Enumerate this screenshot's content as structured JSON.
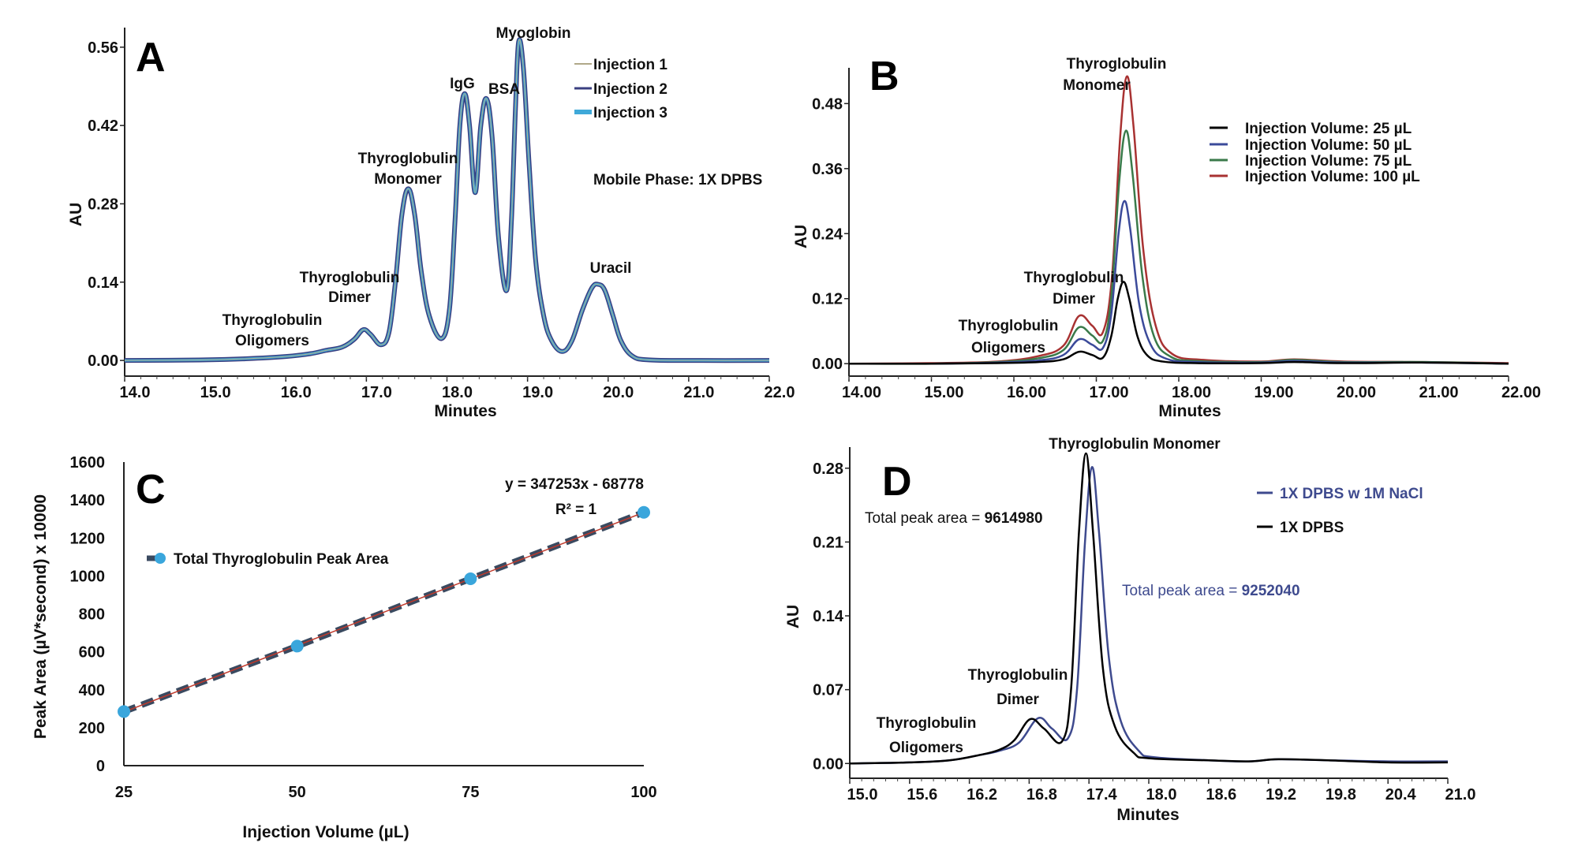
{
  "chart_data": [
    {
      "panel": "A",
      "type": "line",
      "xlabel": "Minutes",
      "ylabel": "AU",
      "xlim": [
        14,
        22
      ],
      "ylim": [
        -0.028,
        0.595
      ],
      "xticks": [
        "14.0",
        "15.0",
        "16.0",
        "17.0",
        "18.0",
        "19.0",
        "20.0",
        "21.0",
        "22.0"
      ],
      "yticks": [
        "0.00",
        "0.14",
        "0.28",
        "0.42",
        "0.56"
      ],
      "grid": false,
      "legend_placement": "top-right",
      "annotation_mobile_phase": "Mobile Phase: 1X DPBS",
      "peak_labels": {
        "oligomers": [
          "Thyroglobulin",
          "Oligomers"
        ],
        "dimer": [
          "Thyroglobulin",
          "Dimer"
        ],
        "monomer": [
          "Thyroglobulin",
          "Monomer"
        ],
        "igg": "IgG",
        "bsa": "BSA",
        "myoglobin": "Myoglobin",
        "uracil": "Uracil"
      },
      "trace": [
        [
          14.0,
          0.0
        ],
        [
          15.0,
          0.001
        ],
        [
          15.5,
          0.003
        ],
        [
          16.0,
          0.007
        ],
        [
          16.3,
          0.012
        ],
        [
          16.5,
          0.018
        ],
        [
          16.7,
          0.024
        ],
        [
          16.85,
          0.038
        ],
        [
          16.96,
          0.055
        ],
        [
          17.05,
          0.047
        ],
        [
          17.18,
          0.028
        ],
        [
          17.28,
          0.05
        ],
        [
          17.36,
          0.14
        ],
        [
          17.44,
          0.26
        ],
        [
          17.52,
          0.307
        ],
        [
          17.6,
          0.26
        ],
        [
          17.68,
          0.16
        ],
        [
          17.78,
          0.08
        ],
        [
          17.93,
          0.039
        ],
        [
          18.03,
          0.09
        ],
        [
          18.1,
          0.25
        ],
        [
          18.16,
          0.42
        ],
        [
          18.22,
          0.477
        ],
        [
          18.28,
          0.42
        ],
        [
          18.35,
          0.3
        ],
        [
          18.42,
          0.42
        ],
        [
          18.49,
          0.468
        ],
        [
          18.56,
          0.4
        ],
        [
          18.64,
          0.22
        ],
        [
          18.74,
          0.125
        ],
        [
          18.8,
          0.25
        ],
        [
          18.85,
          0.45
        ],
        [
          18.89,
          0.57
        ],
        [
          18.95,
          0.52
        ],
        [
          19.02,
          0.35
        ],
        [
          19.1,
          0.18
        ],
        [
          19.2,
          0.08
        ],
        [
          19.3,
          0.035
        ],
        [
          19.43,
          0.016
        ],
        [
          19.55,
          0.035
        ],
        [
          19.68,
          0.09
        ],
        [
          19.8,
          0.13
        ],
        [
          19.88,
          0.136
        ],
        [
          19.96,
          0.125
        ],
        [
          20.06,
          0.08
        ],
        [
          20.16,
          0.035
        ],
        [
          20.3,
          0.008
        ],
        [
          20.5,
          0.001
        ],
        [
          21.0,
          0.0
        ],
        [
          22.0,
          0.0
        ]
      ],
      "series": [
        {
          "name": "Injection 1",
          "color": "#b0a888"
        },
        {
          "name": "Injection 2",
          "color": "#3a3f80"
        },
        {
          "name": "Injection 3",
          "color": "#3fa9d9"
        }
      ]
    },
    {
      "panel": "B",
      "type": "line",
      "xlabel": "Minutes",
      "ylabel": "AU",
      "xlim": [
        14,
        22
      ],
      "ylim": [
        -0.023,
        0.546
      ],
      "xticks": [
        "14.00",
        "15.00",
        "16.00",
        "17.00",
        "18.00",
        "19.00",
        "20.00",
        "21.00",
        "22.00"
      ],
      "yticks": [
        "0.00",
        "0.12",
        "0.24",
        "0.36",
        "0.48"
      ],
      "grid": false,
      "legend_placement": "top-right",
      "peak_labels": {
        "oligomers": [
          "Thyroglobulin",
          "Oligomers"
        ],
        "dimer": [
          "Thyroglobulin",
          "Dimer"
        ],
        "monomer": [
          "Thyroglobulin",
          "Monomer"
        ]
      },
      "series": [
        {
          "name": "Injection Volume: 25 µL",
          "color": "#000000",
          "points": [
            [
              14,
              0
            ],
            [
              15,
              0
            ],
            [
              15.8,
              0.001
            ],
            [
              16.3,
              0.003
            ],
            [
              16.6,
              0.008
            ],
            [
              16.79,
              0.022
            ],
            [
              16.95,
              0.016
            ],
            [
              17.08,
              0.011
            ],
            [
              17.18,
              0.05
            ],
            [
              17.26,
              0.12
            ],
            [
              17.33,
              0.151
            ],
            [
              17.4,
              0.12
            ],
            [
              17.5,
              0.05
            ],
            [
              17.62,
              0.015
            ],
            [
              17.8,
              0.004
            ],
            [
              18.2,
              0.001
            ],
            [
              19.0,
              0.001
            ],
            [
              19.4,
              0.003
            ],
            [
              20.0,
              0.001
            ],
            [
              21.0,
              0.002
            ],
            [
              22,
              0
            ]
          ]
        },
        {
          "name": "Injection Volume: 50 µL",
          "color": "#3b4a9a",
          "points": [
            [
              14,
              0
            ],
            [
              15,
              0
            ],
            [
              15.8,
              0.002
            ],
            [
              16.3,
              0.006
            ],
            [
              16.6,
              0.016
            ],
            [
              16.79,
              0.045
            ],
            [
              16.95,
              0.035
            ],
            [
              17.08,
              0.029
            ],
            [
              17.18,
              0.09
            ],
            [
              17.27,
              0.24
            ],
            [
              17.34,
              0.3
            ],
            [
              17.41,
              0.25
            ],
            [
              17.52,
              0.11
            ],
            [
              17.66,
              0.035
            ],
            [
              17.85,
              0.009
            ],
            [
              18.2,
              0.003
            ],
            [
              19.0,
              0.002
            ],
            [
              19.4,
              0.005
            ],
            [
              20.0,
              0.002
            ],
            [
              21.0,
              0.002
            ],
            [
              22,
              0
            ]
          ]
        },
        {
          "name": "Injection Volume: 75 µL",
          "color": "#3a7a4a",
          "points": [
            [
              14,
              0
            ],
            [
              15,
              0
            ],
            [
              15.8,
              0.003
            ],
            [
              16.3,
              0.01
            ],
            [
              16.6,
              0.025
            ],
            [
              16.79,
              0.067
            ],
            [
              16.95,
              0.052
            ],
            [
              17.08,
              0.042
            ],
            [
              17.18,
              0.12
            ],
            [
              17.28,
              0.34
            ],
            [
              17.36,
              0.43
            ],
            [
              17.44,
              0.35
            ],
            [
              17.56,
              0.16
            ],
            [
              17.7,
              0.05
            ],
            [
              17.9,
              0.013
            ],
            [
              18.2,
              0.005
            ],
            [
              19.0,
              0.003
            ],
            [
              19.4,
              0.007
            ],
            [
              20.0,
              0.003
            ],
            [
              21.0,
              0.003
            ],
            [
              22,
              0
            ]
          ]
        },
        {
          "name": "Injection Volume: 100 µL",
          "color": "#a83232",
          "points": [
            [
              14,
              0
            ],
            [
              15,
              0.001
            ],
            [
              15.8,
              0.004
            ],
            [
              16.3,
              0.014
            ],
            [
              16.6,
              0.033
            ],
            [
              16.79,
              0.088
            ],
            [
              16.95,
              0.07
            ],
            [
              17.08,
              0.058
            ],
            [
              17.19,
              0.16
            ],
            [
              17.29,
              0.42
            ],
            [
              17.37,
              0.53
            ],
            [
              17.45,
              0.44
            ],
            [
              17.57,
              0.21
            ],
            [
              17.72,
              0.07
            ],
            [
              17.92,
              0.018
            ],
            [
              18.3,
              0.007
            ],
            [
              19.0,
              0.004
            ],
            [
              19.4,
              0.008
            ],
            [
              20.0,
              0.004
            ],
            [
              21.0,
              0.003
            ],
            [
              22,
              0.001
            ]
          ]
        }
      ]
    },
    {
      "panel": "C",
      "type": "scatter",
      "xlabel": "Injection Volume (µL)",
      "ylabel": "Peak Area (µV*second)   x 10000",
      "xlim": [
        25,
        100
      ],
      "ylim": [
        0,
        1600
      ],
      "xticks": [
        "25",
        "50",
        "75",
        "100"
      ],
      "yticks": [
        "0",
        "200",
        "400",
        "600",
        "800",
        "1000",
        "1200",
        "1400",
        "1600"
      ],
      "grid": false,
      "legend_placement": "top-left",
      "equation": "y = 347253x - 68778",
      "r_squared": "R² = 1",
      "series": [
        {
          "name": "Total Thyroglobulin Peak Area",
          "color": "#3aa6dc",
          "line_color": "#3a4a60",
          "trend_color": "#c0392b",
          "x": [
            25,
            50,
            75,
            100
          ],
          "y": [
            285,
            630,
            985,
            1335
          ]
        }
      ]
    },
    {
      "panel": "D",
      "type": "line",
      "xlabel": "Minutes",
      "ylabel": "AU",
      "xlim": [
        15,
        21
      ],
      "ylim": [
        -0.014,
        0.3
      ],
      "xticks": [
        "15.0",
        "15.6",
        "16.2",
        "16.8",
        "17.4",
        "18.0",
        "18.6",
        "19.2",
        "19.8",
        "20.4",
        "21.0"
      ],
      "yticks": [
        "0.00",
        "0.07",
        "0.14",
        "0.21",
        "0.28"
      ],
      "grid": false,
      "legend_placement": "top-right",
      "peak_labels": {
        "oligomers": [
          "Thyroglobulin",
          "Oligomers"
        ],
        "dimer": [
          "Thyroglobulin",
          "Dimer"
        ],
        "monomer": "Thyroglobulin Monomer"
      },
      "area_labels": {
        "black_prefix": "Total peak area = ",
        "black_value": "9614980",
        "blue_prefix": "Total peak area = ",
        "blue_value": "9252040"
      },
      "series": [
        {
          "name": "1X DPBS w 1M NaCl",
          "color": "#3e4a8e",
          "points": [
            [
              15,
              0
            ],
            [
              15.6,
              0.001
            ],
            [
              16.0,
              0.003
            ],
            [
              16.3,
              0.008
            ],
            [
              16.5,
              0.012
            ],
            [
              16.7,
              0.02
            ],
            [
              16.89,
              0.043
            ],
            [
              17.03,
              0.033
            ],
            [
              17.19,
              0.024
            ],
            [
              17.28,
              0.07
            ],
            [
              17.36,
              0.21
            ],
            [
              17.43,
              0.281
            ],
            [
              17.5,
              0.22
            ],
            [
              17.6,
              0.1
            ],
            [
              17.72,
              0.04
            ],
            [
              17.9,
              0.012
            ],
            [
              18.05,
              0.006
            ],
            [
              18.6,
              0.003
            ],
            [
              19.0,
              0.002
            ],
            [
              19.3,
              0.004
            ],
            [
              19.8,
              0.003
            ],
            [
              20.4,
              0.002
            ],
            [
              21,
              0.002
            ]
          ]
        },
        {
          "name": "1X DPBS",
          "color": "#000000",
          "points": [
            [
              15,
              0
            ],
            [
              15.6,
              0.001
            ],
            [
              16.0,
              0.003
            ],
            [
              16.3,
              0.008
            ],
            [
              16.5,
              0.013
            ],
            [
              16.65,
              0.022
            ],
            [
              16.81,
              0.042
            ],
            [
              16.95,
              0.033
            ],
            [
              17.13,
              0.021
            ],
            [
              17.22,
              0.07
            ],
            [
              17.3,
              0.22
            ],
            [
              17.37,
              0.294
            ],
            [
              17.44,
              0.22
            ],
            [
              17.54,
              0.09
            ],
            [
              17.66,
              0.035
            ],
            [
              17.85,
              0.01
            ],
            [
              18.0,
              0.005
            ],
            [
              18.6,
              0.003
            ],
            [
              19.0,
              0.002
            ],
            [
              19.3,
              0.004
            ],
            [
              19.8,
              0.003
            ],
            [
              20.4,
              0.001
            ],
            [
              21,
              0.001
            ]
          ]
        }
      ]
    }
  ]
}
